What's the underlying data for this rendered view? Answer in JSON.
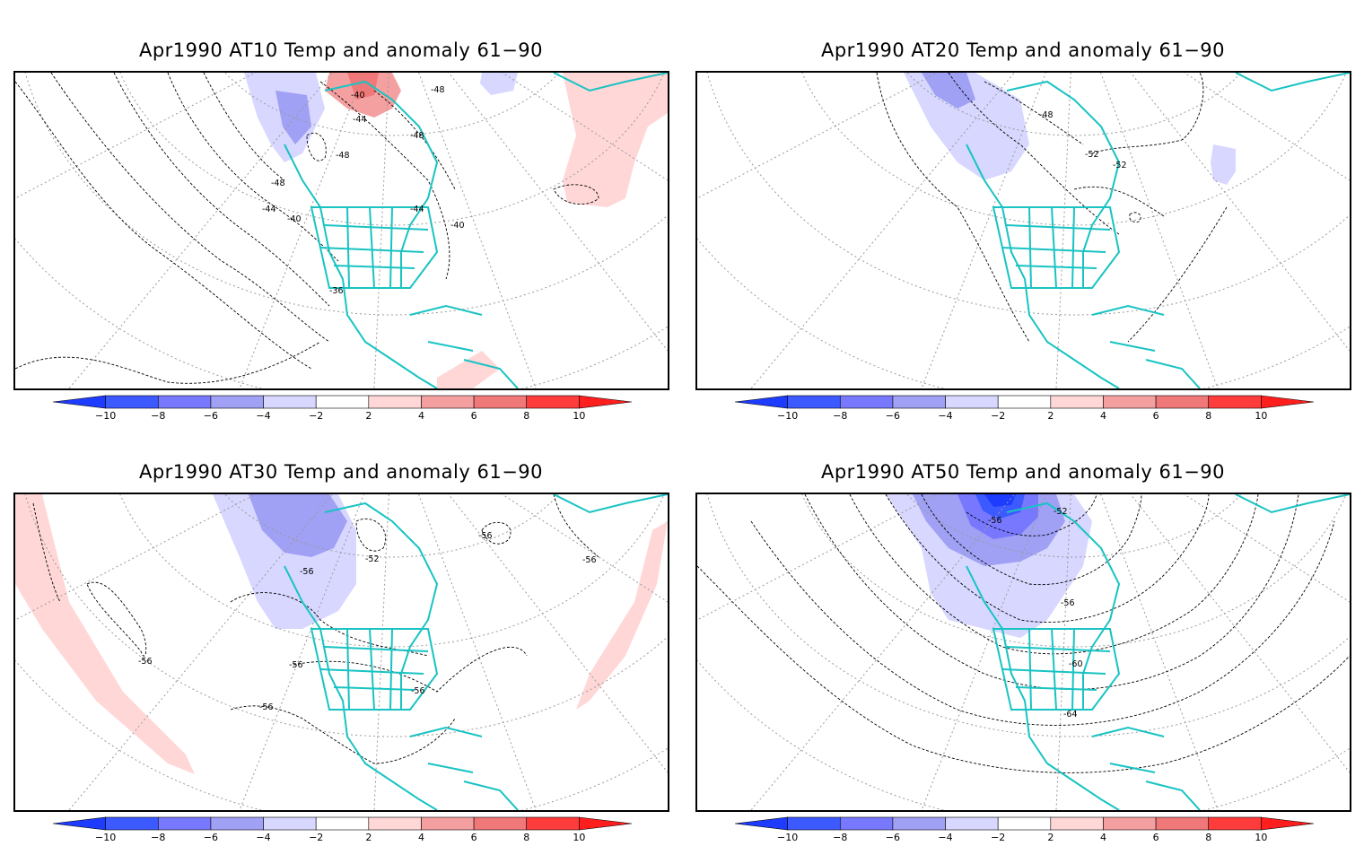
{
  "panels": [
    {
      "id": "at10",
      "title": "Apr1990 AT10 Temp and anomaly 61−90",
      "contour_labels": [
        "-40",
        "-48",
        "-44",
        "-48",
        "-48",
        "-48",
        "-44",
        "-40",
        "-44",
        "-40",
        "-36"
      ]
    },
    {
      "id": "at20",
      "title": "Apr1990 AT20 Temp and anomaly 61−90",
      "contour_labels": [
        "-48",
        "-52",
        "-52"
      ]
    },
    {
      "id": "at30",
      "title": "Apr1990 AT30 Temp and anomaly 61−90",
      "contour_labels": [
        "-56",
        "-52",
        "-56",
        "-56",
        "-56",
        "-56",
        "-56",
        "-56"
      ]
    },
    {
      "id": "at50",
      "title": "Apr1990 AT50 Temp and anomaly 61−90",
      "contour_labels": [
        "-56",
        "-52",
        "-56",
        "-60",
        "-64"
      ]
    }
  ],
  "colorbar": {
    "labels": [
      "−10",
      "−8",
      "−6",
      "−4",
      "−2",
      "2",
      "4",
      "6",
      "8",
      "10"
    ],
    "colors": [
      "#1e3cff",
      "#3c5aff",
      "#7878ff",
      "#a0a0f5",
      "#d7d7ff",
      "#ffffff",
      "#ffd7d7",
      "#f5a0a0",
      "#f07878",
      "#ff3c3c",
      "#ff1e1e"
    ]
  }
}
